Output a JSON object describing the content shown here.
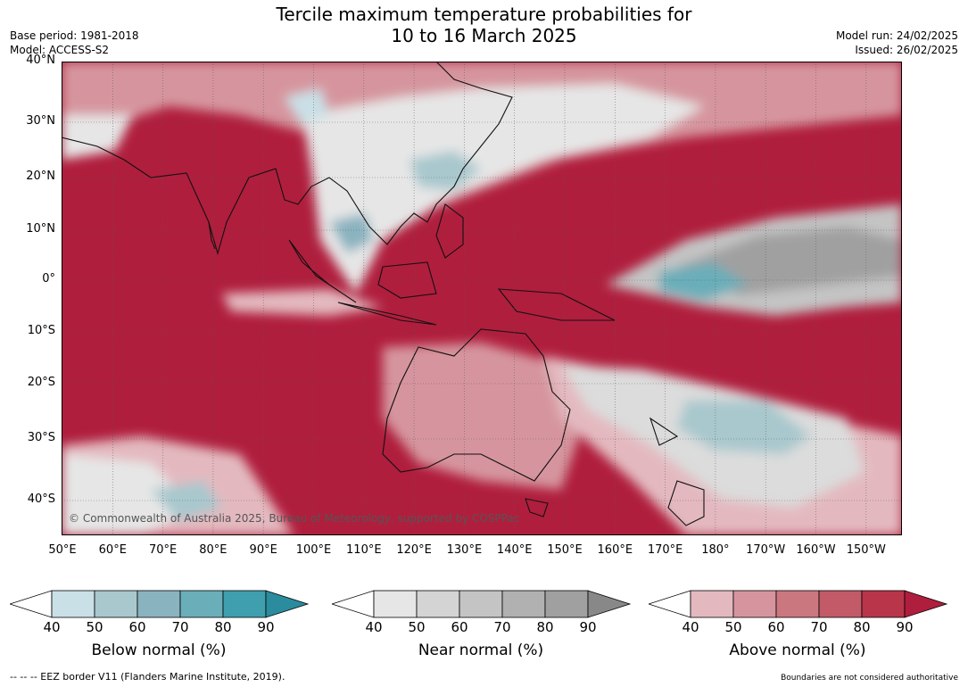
{
  "title_line1": "Tercile maximum temperature probabilities for",
  "title_line2": "10 to 16 March 2025",
  "base_period": "Base period: 1981-2018",
  "model": "Model: ACCESS-S2",
  "model_run": "Model run: 24/02/2025",
  "issued": "Issued: 26/02/2025",
  "lat_labels": [
    "40°N",
    "30°N",
    "20°N",
    "10°N",
    "0°",
    "10°S",
    "20°S",
    "30°S",
    "40°S"
  ],
  "lon_labels": [
    "50°E",
    "60°E",
    "70°E",
    "80°E",
    "90°E",
    "100°E",
    "110°E",
    "120°E",
    "130°E",
    "140°E",
    "150°E",
    "160°E",
    "170°E",
    "180°",
    "170°W",
    "160°W",
    "150°W"
  ],
  "copyright": "© Commonwealth of Australia 2025, Bureau of Meteorology, supported by COSPPac",
  "legends": [
    {
      "title": "Below normal (%)",
      "ticks": [
        "40",
        "50",
        "60",
        "70",
        "80",
        "90"
      ],
      "colors": [
        "#ffffff",
        "#c9e0e6",
        "#a8c8cd",
        "#8ab3c0",
        "#6aaeb9",
        "#3f9fae",
        "#2a8c9e"
      ]
    },
    {
      "title": "Near normal (%)",
      "ticks": [
        "40",
        "50",
        "60",
        "70",
        "80",
        "90"
      ],
      "colors": [
        "#ffffff",
        "#e6e6e6",
        "#d4d4d4",
        "#c4c4c4",
        "#b1b1b1",
        "#a0a0a0",
        "#888888"
      ]
    },
    {
      "title": "Above normal (%)",
      "ticks": [
        "40",
        "50",
        "60",
        "70",
        "80",
        "90"
      ],
      "colors": [
        "#ffffff",
        "#e3b9bf",
        "#d6959e",
        "#cb7780",
        "#c25a68",
        "#b8354a",
        "#b01e3d"
      ]
    }
  ],
  "footer_left": "--  --  -- EEZ border V11 (Flanders Marine Institute, 2019).",
  "footer_right": "Boundaries are not considered authoritative"
}
